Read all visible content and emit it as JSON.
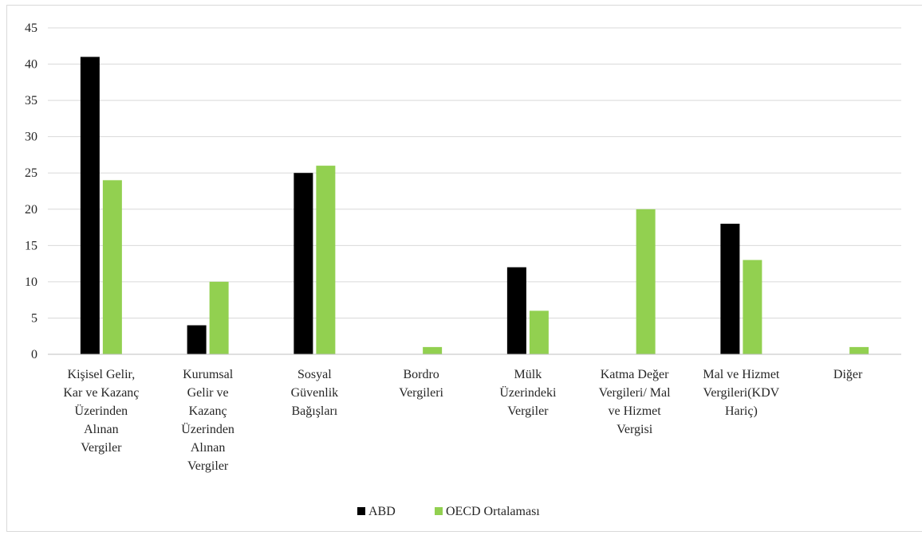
{
  "chart_data": {
    "type": "bar",
    "categories": [
      [
        "Kişisel Gelir,",
        "Kar ve Kazanç",
        "Üzerinden",
        "Alınan",
        "Vergiler"
      ],
      [
        "Kurumsal",
        "Gelir ve",
        "Kazanç",
        "Üzerinden",
        "Alınan",
        "Vergiler"
      ],
      [
        "Sosyal",
        "Güvenlik",
        "Bağışları"
      ],
      [
        "Bordro",
        "Vergileri"
      ],
      [
        "Mülk",
        "Üzerindeki",
        "Vergiler"
      ],
      [
        "Katma Değer",
        "Vergileri/ Mal",
        "ve Hizmet",
        "Vergisi"
      ],
      [
        "Mal ve Hizmet",
        "Vergileri(KDV",
        "Hariç)"
      ],
      [
        "Diğer"
      ]
    ],
    "series": [
      {
        "name": "ABD",
        "color": "#000000",
        "values": [
          41,
          4,
          25,
          0,
          12,
          0,
          18,
          0
        ]
      },
      {
        "name": "OECD Ortalaması",
        "color": "#92d050",
        "values": [
          24,
          10,
          26,
          1,
          6,
          20,
          13,
          1
        ]
      }
    ],
    "ylim": [
      0,
      45
    ],
    "yticks": [
      0,
      5,
      10,
      15,
      20,
      25,
      30,
      35,
      40,
      45
    ],
    "grid": true,
    "legend_position": "bottom",
    "title": "",
    "xlabel": "",
    "ylabel": ""
  }
}
